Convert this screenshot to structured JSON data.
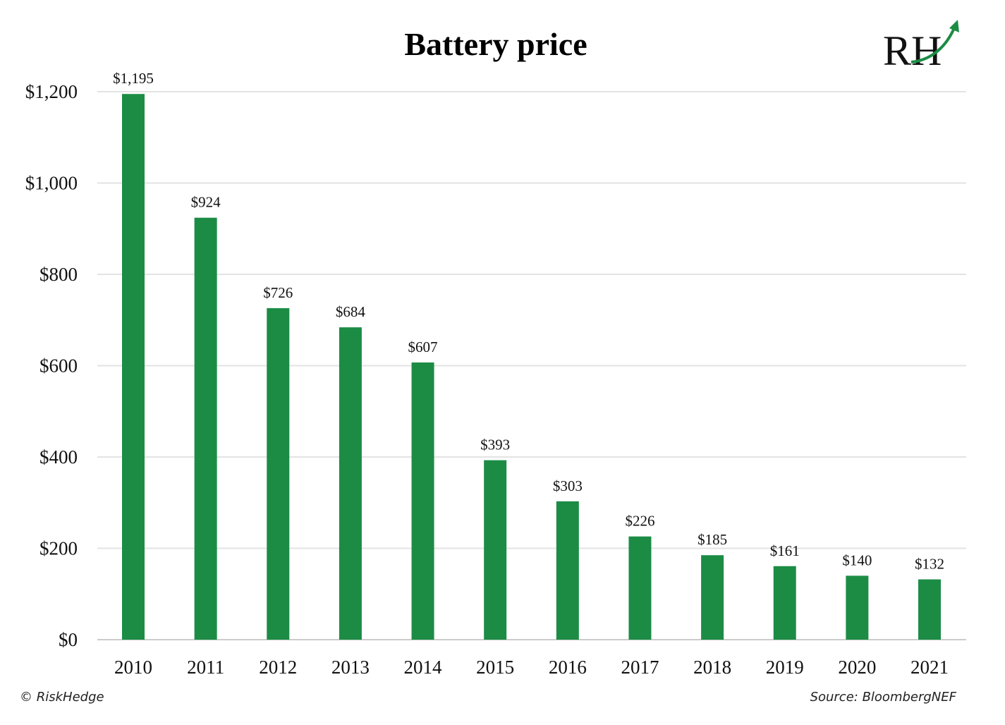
{
  "colors": {
    "bar": "#1c8c45",
    "gridline": "#e3e3e3",
    "baseline": "#cccccc",
    "logo_accent": "#1c8c45"
  },
  "logo": {
    "text": "RH",
    "arrow_icon": "up-arrow-icon"
  },
  "footer": {
    "left": "© RiskHedge",
    "right": "Source: BloombergNEF"
  },
  "chart_data": {
    "type": "bar",
    "title": "Battery price",
    "xlabel": "",
    "ylabel": "",
    "categories": [
      "2010",
      "2011",
      "2012",
      "2013",
      "2014",
      "2015",
      "2016",
      "2017",
      "2018",
      "2019",
      "2020",
      "2021"
    ],
    "values": [
      1195,
      924,
      726,
      684,
      607,
      393,
      303,
      226,
      185,
      161,
      140,
      132
    ],
    "data_labels": [
      "$1,195",
      "$924",
      "$726",
      "$684",
      "$607",
      "$393",
      "$303",
      "$226",
      "$185",
      "$161",
      "$140",
      "$132"
    ],
    "ylim": [
      0,
      1200
    ],
    "y_ticks": [
      0,
      200,
      400,
      600,
      800,
      1000,
      1200
    ],
    "y_tick_labels": [
      "$0",
      "$200",
      "$400",
      "$600",
      "$800",
      "$1,000",
      "$1,200"
    ],
    "grid": true,
    "legend": "none"
  }
}
